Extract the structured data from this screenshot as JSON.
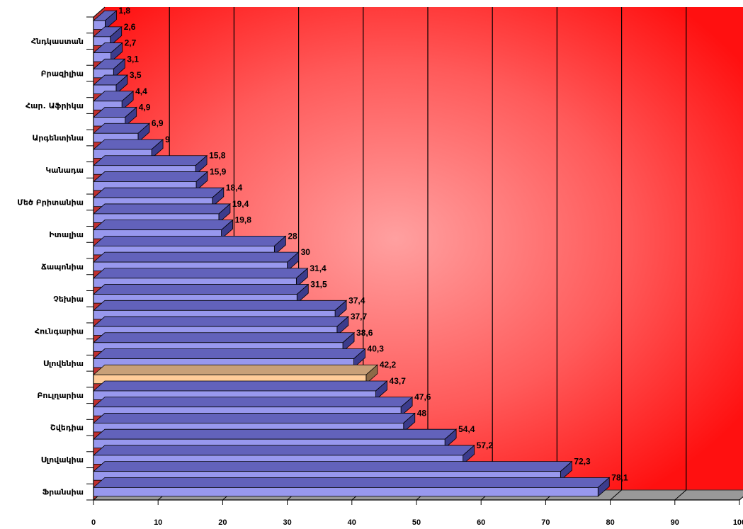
{
  "chart_data": {
    "type": "bar",
    "orientation": "horizontal",
    "three_d": true,
    "xlim": [
      0,
      100
    ],
    "x_ticks": [
      0,
      10,
      20,
      30,
      40,
      50,
      60,
      70,
      80,
      90,
      100
    ],
    "grid": true,
    "legend": "none",
    "category_labels": [
      "Հնդկաստան",
      "Բրազիլիա",
      "Հար. Աֆրիկա",
      "Արգենտինա",
      "Կանադա",
      "Մեծ Բրիտանիա",
      "Իտալիա",
      "Ճապոնիա",
      "Չեխիա",
      "Հունգարիա",
      "Սլովենիա",
      "Բուլղարիա",
      "Շվեդիա",
      "Սլովակիա",
      "Ֆրանսիա"
    ],
    "values": [
      1.8,
      2.6,
      2.7,
      3.1,
      3.5,
      4.4,
      4.9,
      6.9,
      9,
      15.8,
      15.9,
      18.4,
      19.4,
      19.8,
      28,
      30,
      31.4,
      31.5,
      37.4,
      37.7,
      38.6,
      40.3,
      42.2,
      43.7,
      47.6,
      48,
      54.4,
      57.2,
      72.3,
      78.1
    ],
    "value_labels": [
      "1,8",
      "2,6",
      "2,7",
      "3,1",
      "3,5",
      "4,4",
      "4,9",
      "6,9",
      "9",
      "15,8",
      "15,9",
      "18,4",
      "19,4",
      "19,8",
      "28",
      "30",
      "31,4",
      "31,5",
      "37,4",
      "37,7",
      "38,6",
      "40,3",
      "42,2",
      "43,7",
      "47,6",
      "48",
      "54,4",
      "57,2",
      "72,3",
      "78,1"
    ],
    "highlight_index": 22,
    "colors": {
      "bar": "#9898ee",
      "bar_top": "#6262bb",
      "bar_side": "#3c3c8c",
      "highlight": "#ffcc99",
      "highlight_top": "#c8a078",
      "highlight_side": "#8c6a48",
      "background_center": "#ffa0a0",
      "background_edge": "#ff1010",
      "gridline": "#000000"
    }
  }
}
